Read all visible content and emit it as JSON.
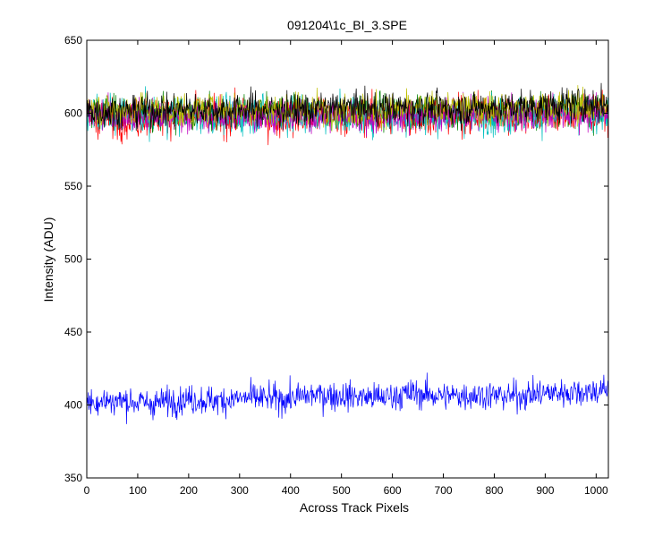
{
  "chart_data": {
    "type": "line",
    "title": "091204\\1c_BI_3.SPE",
    "xlabel": "Across Track Pixels",
    "ylabel": "Intensity (ADU)",
    "xlim": [
      0,
      1024
    ],
    "ylim": [
      350,
      650
    ],
    "xticks": [
      0,
      100,
      200,
      300,
      400,
      500,
      600,
      700,
      800,
      900,
      1000
    ],
    "yticks": [
      350,
      400,
      450,
      500,
      550,
      600,
      650
    ],
    "grid": false,
    "legend": "none",
    "x": [
      0,
      64,
      128,
      192,
      256,
      320,
      384,
      448,
      512,
      576,
      640,
      704,
      768,
      832,
      896,
      960,
      1024
    ],
    "series": [
      {
        "color": "#0000ff",
        "values": [
          402,
          403,
          401,
          404,
          403,
          405,
          404,
          407,
          406,
          405,
          408,
          406,
          407,
          406,
          408,
          409,
          410
        ],
        "noise": 7
      },
      {
        "color": "#008000",
        "values": [
          601,
          600,
          600,
          599,
          600,
          600,
          601,
          600,
          600,
          601,
          601,
          600,
          601,
          601,
          602,
          603,
          602
        ],
        "noise": 8
      },
      {
        "color": "#ff0000",
        "values": [
          597,
          596,
          597,
          598,
          597,
          598,
          597,
          598,
          598,
          597,
          598,
          598,
          599,
          598,
          599,
          599,
          600
        ],
        "noise": 9
      },
      {
        "color": "#00bfbf",
        "values": [
          599,
          598,
          598,
          599,
          598,
          599,
          599,
          598,
          599,
          599,
          598,
          599,
          599,
          598,
          599,
          600,
          600
        ],
        "noise": 9
      },
      {
        "color": "#bf00bf",
        "values": [
          598,
          599,
          598,
          599,
          598,
          599,
          598,
          599,
          599,
          598,
          599,
          600,
          599,
          599,
          600,
          600,
          601
        ],
        "noise": 8
      },
      {
        "color": "#bfbf00",
        "values": [
          603,
          602,
          603,
          602,
          603,
          603,
          602,
          603,
          603,
          602,
          603,
          604,
          603,
          604,
          604,
          605,
          604
        ],
        "noise": 8
      },
      {
        "color": "#000000",
        "values": [
          602,
          601,
          602,
          603,
          602,
          603,
          602,
          603,
          604,
          603,
          604,
          603,
          604,
          604,
          605,
          606,
          606
        ],
        "noise": 8
      }
    ]
  }
}
